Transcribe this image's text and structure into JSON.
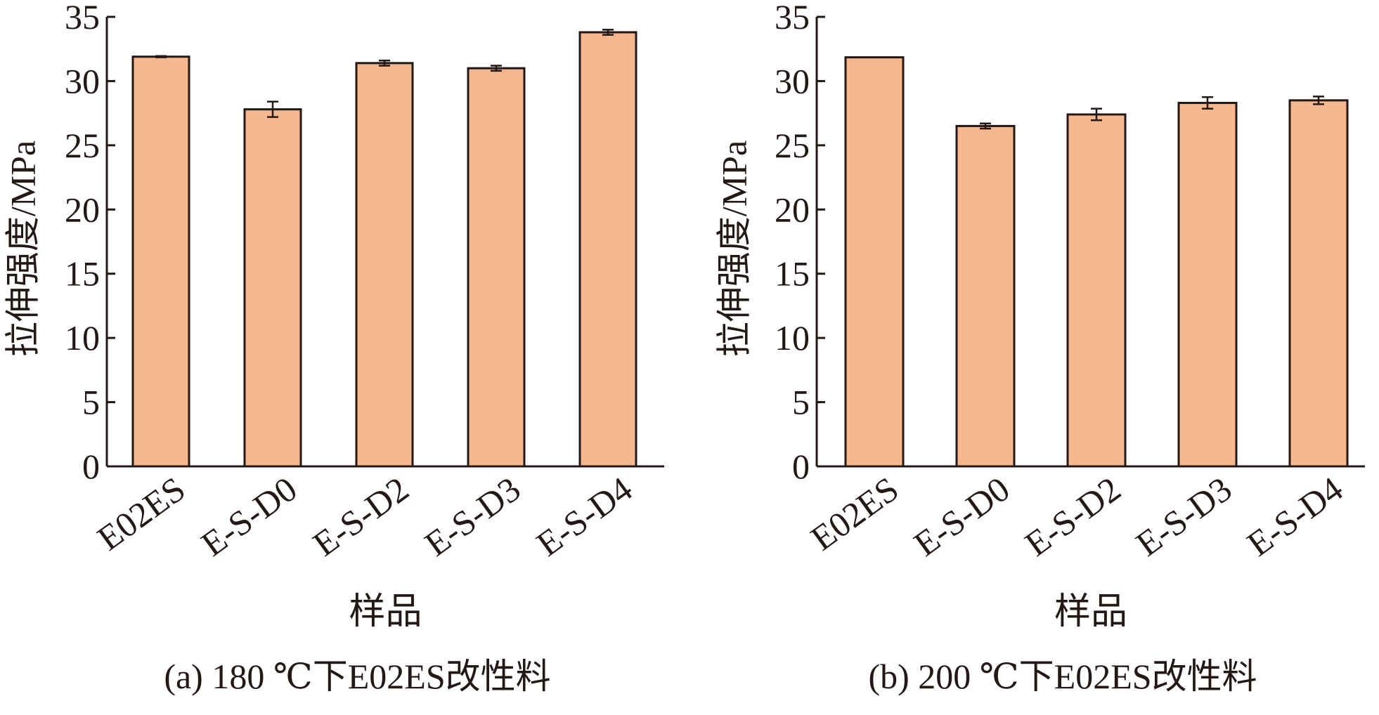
{
  "colors": {
    "bar_fill": "#F5B78E",
    "bar_stroke": "#231815",
    "axis": "#231815",
    "text": "#231815"
  },
  "chart_data": [
    {
      "type": "bar",
      "title": "",
      "caption": "(a) 180 ℃下E02ES改性料",
      "xlabel": "样品",
      "ylabel": "拉伸强度/MPa",
      "ylim": [
        0,
        35
      ],
      "yticks": [
        0,
        5,
        10,
        15,
        20,
        25,
        30,
        35
      ],
      "grid": false,
      "categories": [
        "E02ES",
        "E-S-D0",
        "E-S-D2",
        "E-S-D3",
        "E-S-D4"
      ],
      "values": [
        31.9,
        27.8,
        31.4,
        31.0,
        33.8
      ],
      "errors": [
        0.05,
        0.6,
        0.2,
        0.2,
        0.2
      ]
    },
    {
      "type": "bar",
      "title": "",
      "caption": "(b) 200 ℃下E02ES改性料",
      "xlabel": "样品",
      "ylabel": "拉伸强度/MPa",
      "ylim": [
        0,
        35
      ],
      "yticks": [
        0,
        5,
        10,
        15,
        20,
        25,
        30,
        35
      ],
      "grid": false,
      "categories": [
        "E02ES",
        "E-S-D0",
        "E-S-D2",
        "E-S-D3",
        "E-S-D4"
      ],
      "values": [
        31.85,
        26.5,
        27.4,
        28.3,
        28.5
      ],
      "errors": [
        0.0,
        0.2,
        0.45,
        0.45,
        0.3
      ]
    }
  ]
}
